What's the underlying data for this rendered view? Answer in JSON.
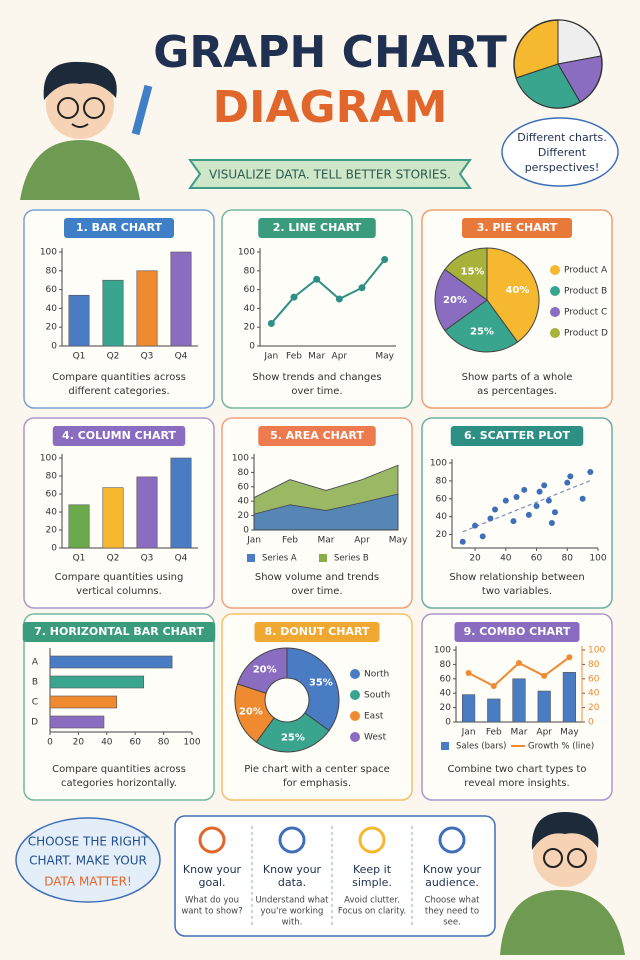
{
  "header": {
    "title": "GRAPH CHART",
    "subtitle": "DIAGRAM",
    "banner": "VISUALIZE DATA. TELL BETTER STORIES.",
    "bubble": [
      "Different charts.",
      "Different",
      "perspectives!"
    ]
  },
  "chart_data": [
    {
      "type": "bar",
      "title": "1. BAR CHART",
      "badge_color": "#3f7fc8",
      "caption": [
        "Compare quantities across",
        "different categories."
      ],
      "categories": [
        "Q1",
        "Q2",
        "Q3",
        "Q4"
      ],
      "values": [
        54,
        70,
        80,
        100
      ],
      "colors": [
        "#4a7cc4",
        "#3aa58f",
        "#f08a30",
        "#8a6cc0"
      ],
      "ylim": [
        0,
        100
      ],
      "yticks": [
        0,
        20,
        40,
        60,
        80,
        100
      ]
    },
    {
      "type": "line",
      "title": "2. LINE CHART",
      "badge_color": "#3a9c7c",
      "caption": [
        "Show trends and changes",
        "over time."
      ],
      "categories": [
        "Jan",
        "Feb",
        "Mar",
        "Apr",
        null,
        "May"
      ],
      "values": [
        24,
        52,
        71,
        50,
        62,
        92
      ],
      "color": "#2e8f84",
      "ylim": [
        0,
        100
      ],
      "yticks": [
        0,
        20,
        40,
        60,
        80,
        100
      ]
    },
    {
      "type": "pie",
      "title": "3. PIE CHART",
      "badge_color": "#e8793a",
      "caption": [
        "Show parts of a whole",
        "as percentages."
      ],
      "categories": [
        "Product A",
        "Product B",
        "Product C",
        "Product D"
      ],
      "values": [
        40,
        25,
        20,
        15
      ],
      "value_labels": [
        "40%",
        "25%",
        "20%",
        "15%"
      ],
      "colors": [
        "#f5b82e",
        "#3aa58f",
        "#8a6cc0",
        "#a8b13a"
      ]
    },
    {
      "type": "bar",
      "title": "4. COLUMN CHART",
      "badge_color": "#8a6cc0",
      "caption": [
        "Compare quantities using",
        "vertical columns."
      ],
      "categories": [
        "Q1",
        "Q2",
        "Q3",
        "Q4"
      ],
      "values": [
        48,
        67,
        79,
        100
      ],
      "colors": [
        "#6aaa4a",
        "#f5b82e",
        "#8a6cc0",
        "#4a7cc4"
      ],
      "ylim": [
        0,
        100
      ],
      "yticks": [
        0,
        20,
        40,
        60,
        80,
        100
      ]
    },
    {
      "type": "area",
      "title": "5. AREA CHART",
      "badge_color": "#ee7a4f",
      "caption": [
        "Show volume and trends",
        "over time."
      ],
      "categories": [
        "Jan",
        "Feb",
        "Mar",
        "Apr",
        "May"
      ],
      "series": [
        {
          "name": "Series A",
          "color": "#4a7cc4",
          "values": [
            22,
            35,
            27,
            38,
            50
          ]
        },
        {
          "name": "Series B",
          "color": "#8aab4a",
          "values": [
            45,
            70,
            55,
            70,
            90
          ]
        }
      ],
      "ylim": [
        0,
        100
      ],
      "yticks": [
        0,
        20,
        40,
        60,
        80,
        100
      ]
    },
    {
      "type": "scatter",
      "title": "6. SCATTER PLOT",
      "badge_color": "#2e8f84",
      "caption": [
        "Show relationship between",
        "two variables."
      ],
      "x": [
        12,
        20,
        25,
        30,
        33,
        40,
        45,
        47,
        52,
        55,
        60,
        62,
        65,
        68,
        70,
        72,
        80,
        82,
        90,
        95
      ],
      "y": [
        12,
        30,
        18,
        38,
        48,
        58,
        35,
        62,
        70,
        42,
        52,
        68,
        75,
        58,
        33,
        45,
        78,
        85,
        60,
        90
      ],
      "color": "#3f6fb8",
      "xlim": [
        5,
        100
      ],
      "ylim": [
        5,
        100
      ],
      "xticks": [
        20,
        40,
        60,
        80,
        100
      ],
      "yticks": [
        20,
        40,
        60,
        80,
        100
      ]
    },
    {
      "type": "hbar",
      "title": "7. HORIZONTAL BAR CHART",
      "badge_color": "#3a9c7c",
      "caption": [
        "Compare quantities across",
        "categories horizontally."
      ],
      "categories": [
        "A",
        "B",
        "C",
        "D"
      ],
      "values": [
        86,
        66,
        47,
        38
      ],
      "colors": [
        "#4a7cc4",
        "#3aa58f",
        "#f08a30",
        "#8a6cc0"
      ],
      "xlim": [
        0,
        100
      ],
      "xticks": [
        0,
        20,
        40,
        60,
        80,
        100
      ]
    },
    {
      "type": "donut",
      "title": "8. DONUT CHART",
      "badge_color": "#f0a830",
      "caption": [
        "Pie chart with a center space",
        "for emphasis."
      ],
      "categories": [
        "North",
        "South",
        "East",
        "West"
      ],
      "values": [
        35,
        25,
        20,
        20
      ],
      "value_labels": [
        "35%",
        "25%",
        "20%",
        "20%"
      ],
      "colors": [
        "#4a7cc4",
        "#3aa58f",
        "#f08a30",
        "#8a6cc0"
      ]
    },
    {
      "type": "combo",
      "title": "9. COMBO CHART",
      "badge_color": "#8a6cc0",
      "caption": [
        "Combine two chart types to",
        "reveal more insights."
      ],
      "categories": [
        "Jan",
        "Feb",
        "Mar",
        "Apr",
        "May"
      ],
      "series": [
        {
          "name": "Sales (bars)",
          "color": "#4a7cc4",
          "values": [
            38,
            32,
            60,
            43,
            69
          ]
        },
        {
          "name": "Growth % (line)",
          "color": "#f08a30",
          "axis": "y2",
          "values": [
            68,
            50,
            82,
            64,
            90
          ]
        }
      ],
      "ylim": [
        0,
        100
      ],
      "yticks": [
        0,
        20,
        40,
        60,
        80,
        100
      ],
      "y2lim": [
        0,
        100
      ],
      "y2ticks": [
        0,
        20,
        40,
        60,
        80,
        100
      ]
    }
  ],
  "footer": {
    "slogan": [
      "CHOOSE THE RIGHT",
      "CHART. MAKE YOUR",
      "DATA MATTER!"
    ],
    "tips": [
      {
        "title": [
          "Know your",
          "goal."
        ],
        "text": [
          "What do you",
          "want to show?"
        ]
      },
      {
        "title": [
          "Know your",
          "data."
        ],
        "text": [
          "Understand what",
          "you're working",
          "with."
        ]
      },
      {
        "title": [
          "Keep it",
          "simple."
        ],
        "text": [
          "Avoid clutter.",
          "Focus on clarity."
        ]
      },
      {
        "title": [
          "Know your",
          "audience."
        ],
        "text": [
          "Choose what",
          "they need to",
          "see."
        ]
      }
    ]
  }
}
